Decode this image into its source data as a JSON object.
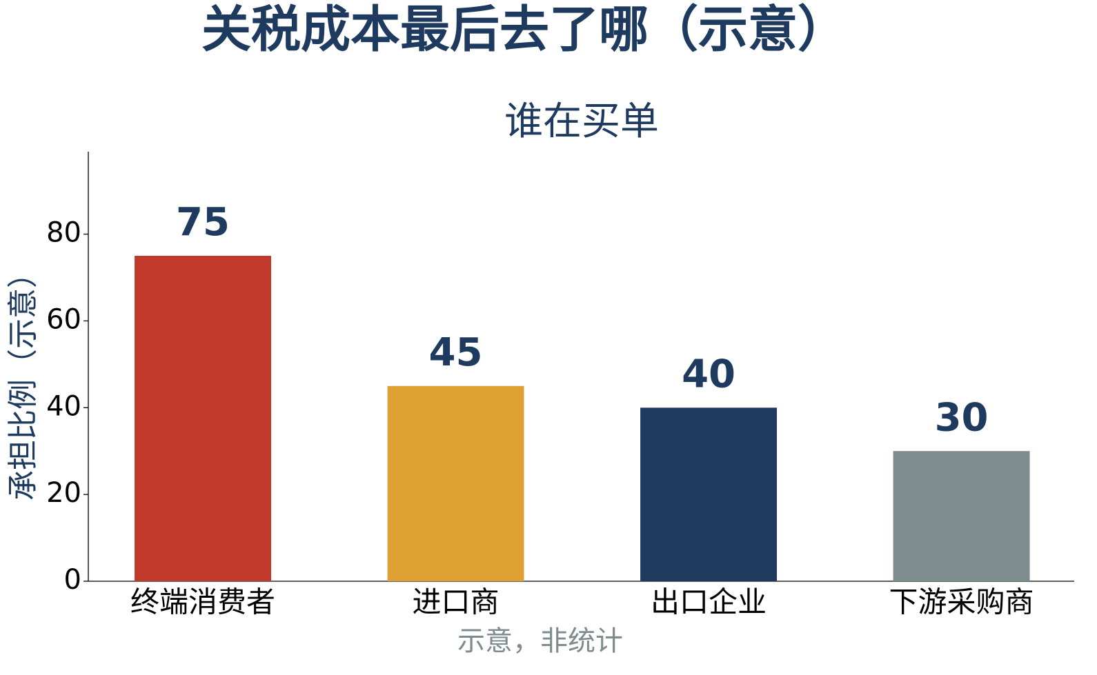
{
  "chart_data": {
    "type": "bar",
    "title": "关税成本最后去了哪（示意）",
    "subtitle": "谁在买单",
    "y_label": "承担比例（示意）",
    "x_label": "示意，非统计",
    "categories": [
      "终端消费者",
      "进口商",
      "出口企业",
      "下游采购商"
    ],
    "values": [
      75,
      45,
      40,
      30
    ],
    "colors": [
      "#c0392b",
      "#dea032",
      "#1e3a5f",
      "#7f8c8d"
    ],
    "ylim": [
      0,
      99
    ],
    "yticks": [
      0,
      20,
      40,
      60,
      80
    ],
    "grid": false
  }
}
